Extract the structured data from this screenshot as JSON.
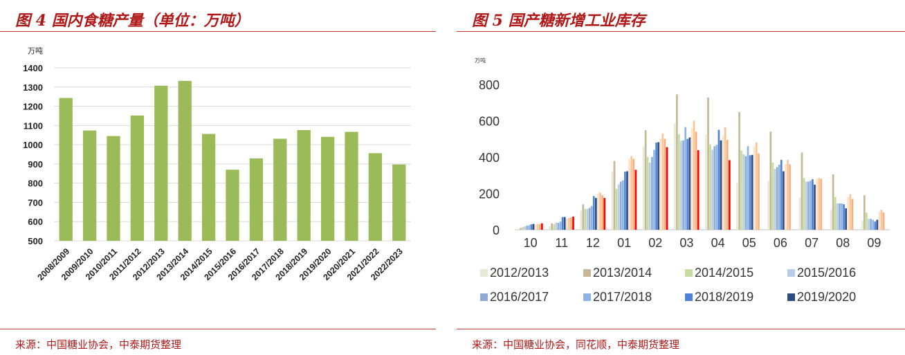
{
  "left": {
    "title": "图 4 国内食糖产量（单位：万吨）",
    "source": "来源：中国糖业协会，中泰期货整理",
    "chart_data": {
      "type": "bar",
      "unit": "万吨",
      "categories": [
        "2008/2009",
        "2009/2010",
        "2010/2011",
        "2011/2012",
        "2012/2013",
        "2013/2014",
        "2014/2015",
        "2015/2016",
        "2016/2017",
        "2017/2018",
        "2018/2019",
        "2019/2020",
        "2020/2021",
        "2021/2022",
        "2022/2023"
      ],
      "values": [
        1243,
        1074,
        1045,
        1152,
        1307,
        1332,
        1056,
        870,
        929,
        1031,
        1076,
        1041,
        1067,
        956,
        897
      ],
      "ylim": [
        500,
        1400
      ],
      "yticks": [
        500,
        600,
        700,
        800,
        900,
        1000,
        1100,
        1200,
        1300,
        1400
      ],
      "color": "#9bbb59",
      "grid": true
    }
  },
  "right": {
    "title": "图 5 国产糖新增工业库存",
    "source": "来源：中国糖业协会，同花顺，中泰期货整理",
    "chart_data": {
      "type": "bar",
      "unit": "万吨",
      "categories": [
        "10",
        "11",
        "12",
        "01",
        "02",
        "03",
        "04",
        "05",
        "06",
        "07",
        "08",
        "09"
      ],
      "ylim": [
        0,
        800
      ],
      "yticks": [
        0,
        200,
        400,
        600,
        800
      ],
      "grid": false,
      "legend": "bottom",
      "series": [
        {
          "name": "2012/2013",
          "color": "#e4ecd8",
          "values": [
            5,
            20,
            105,
            320,
            460,
            585,
            525,
            260,
            270,
            175,
            110,
            50
          ]
        },
        {
          "name": "2013/2014",
          "color": "#c4b897",
          "values": [
            10,
            35,
            140,
            378,
            548,
            745,
            728,
            648,
            540,
            425,
            305,
            190
          ]
        },
        {
          "name": "2014/2015",
          "color": "#c5dc9e",
          "values": [
            15,
            30,
            115,
            225,
            400,
            525,
            470,
            435,
            370,
            285,
            180,
            95
          ]
        },
        {
          "name": "2015/2016",
          "color": "#b9cde6",
          "values": [
            18,
            40,
            115,
            250,
            370,
            490,
            440,
            415,
            335,
            265,
            145,
            60
          ]
        },
        {
          "name": "2016/2017",
          "color": "#8eabd6",
          "values": [
            22,
            38,
            120,
            265,
            400,
            492,
            460,
            405,
            345,
            265,
            145,
            60
          ]
        },
        {
          "name": "2017/2018",
          "color": "#8db4e2",
          "values": [
            25,
            45,
            130,
            272,
            440,
            565,
            468,
            460,
            358,
            270,
            145,
            55
          ]
        },
        {
          "name": "2018/2019",
          "color": "#4f81d9",
          "values": [
            30,
            70,
            185,
            320,
            480,
            500,
            550,
            410,
            385,
            278,
            140,
            45
          ]
        },
        {
          "name": "2019/2020",
          "color": "#2e4d80",
          "values": [
            32,
            70,
            175,
            322,
            482,
            508,
            492,
            412,
            322,
            248,
            118,
            55
          ]
        },
        {
          "color": "#fde3c6",
          "values": [
            28,
            60,
            200,
            390,
            500,
            560,
            520,
            460,
            360,
            280,
            180,
            100
          ]
        },
        {
          "color": "#fbc49a",
          "values": [
            30,
            65,
            205,
            405,
            530,
            600,
            565,
            480,
            385,
            285,
            195,
            110
          ]
        },
        {
          "color": "#f8b07c",
          "values": [
            32,
            68,
            190,
            390,
            500,
            540,
            495,
            420,
            360,
            280,
            170,
            95
          ]
        },
        {
          "color": "#ff0000",
          "values": [
            35,
            72,
            175,
            330,
            455,
            438,
            383,
            null,
            null,
            null,
            null,
            null
          ]
        }
      ]
    }
  }
}
